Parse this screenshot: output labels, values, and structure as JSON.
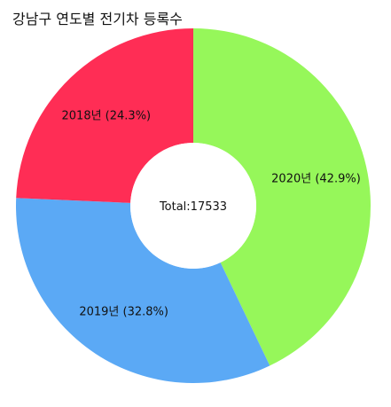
{
  "chart_data": {
    "type": "pie",
    "variant": "donut",
    "title": "강남구 연도별 전기차 등록수",
    "center_text": "Total:17533",
    "total": 17533,
    "slices": [
      {
        "label": "2020년 (42.9%)",
        "category": "2020년",
        "percent": 42.9,
        "color": "#96f75a"
      },
      {
        "label": "2019년 (32.8%)",
        "category": "2019년",
        "percent": 32.8,
        "color": "#5ba9f5"
      },
      {
        "label": "2018년 (24.3%)",
        "category": "2018년",
        "percent": 24.3,
        "color": "#ff2d55"
      }
    ],
    "start": "12 o'clock",
    "direction": "clockwise",
    "legend": "none"
  }
}
